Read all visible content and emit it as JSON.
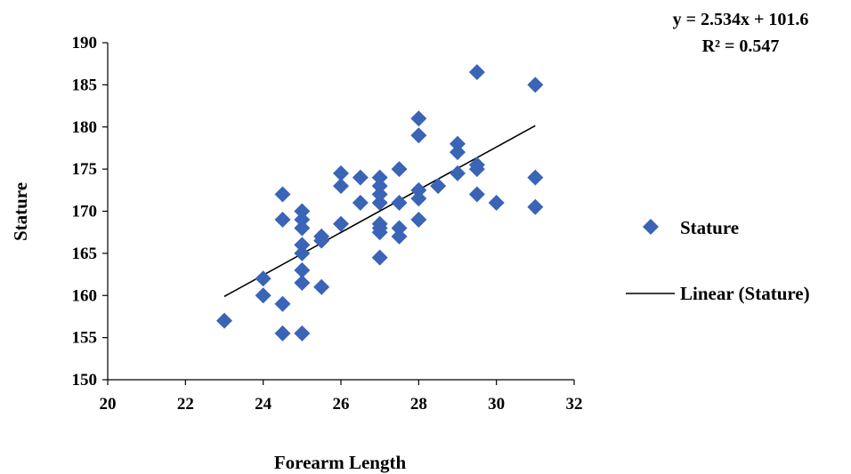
{
  "chart_data": {
    "type": "scatter",
    "title": "",
    "xlabel": "Forearm Length",
    "ylabel": "Stature",
    "xlim": [
      20,
      32
    ],
    "ylim": [
      150,
      190
    ],
    "xticks": [
      20,
      22,
      24,
      26,
      28,
      30,
      32
    ],
    "yticks": [
      150,
      155,
      160,
      165,
      170,
      175,
      180,
      185,
      190
    ],
    "grid": false,
    "legend_position": "right",
    "marker_color": "#3a64b6",
    "series": [
      {
        "name": "Stature",
        "marker": "diamond",
        "points": [
          [
            23,
            157
          ],
          [
            24,
            162
          ],
          [
            24,
            160
          ],
          [
            24.5,
            172
          ],
          [
            24.5,
            169
          ],
          [
            24.5,
            159
          ],
          [
            24.5,
            155.5
          ],
          [
            25,
            170
          ],
          [
            25,
            169
          ],
          [
            25,
            168
          ],
          [
            25,
            166
          ],
          [
            25,
            165
          ],
          [
            25,
            163
          ],
          [
            25,
            161.5
          ],
          [
            25,
            155.5
          ],
          [
            25.5,
            167
          ],
          [
            25.5,
            166.5
          ],
          [
            25.5,
            161
          ],
          [
            26,
            174.5
          ],
          [
            26,
            173
          ],
          [
            26,
            168.5
          ],
          [
            26.5,
            174
          ],
          [
            26.5,
            171
          ],
          [
            27,
            174
          ],
          [
            27,
            173
          ],
          [
            27,
            172
          ],
          [
            27,
            171
          ],
          [
            27,
            168.5
          ],
          [
            27,
            168
          ],
          [
            27,
            167.5
          ],
          [
            27,
            164.5
          ],
          [
            27.5,
            175
          ],
          [
            27.5,
            171
          ],
          [
            27.5,
            168
          ],
          [
            27.5,
            167
          ],
          [
            28,
            181
          ],
          [
            28,
            179
          ],
          [
            28,
            172.5
          ],
          [
            28,
            171.5
          ],
          [
            28,
            169
          ],
          [
            28.5,
            173
          ],
          [
            29,
            178
          ],
          [
            29,
            177
          ],
          [
            29,
            174.5
          ],
          [
            29.5,
            186.5
          ],
          [
            29.5,
            175.5
          ],
          [
            29.5,
            175
          ],
          [
            29.5,
            172
          ],
          [
            30,
            171
          ],
          [
            31,
            185
          ],
          [
            31,
            174
          ],
          [
            31,
            170.5
          ]
        ]
      }
    ],
    "trendline": {
      "name": "Linear (Stature)",
      "slope": 2.534,
      "intercept": 101.6,
      "x_range": [
        23,
        31
      ],
      "equation_label": "y = 2.534x + 101.6",
      "r2_label": "R² = 0.547",
      "color": "#000000"
    }
  }
}
